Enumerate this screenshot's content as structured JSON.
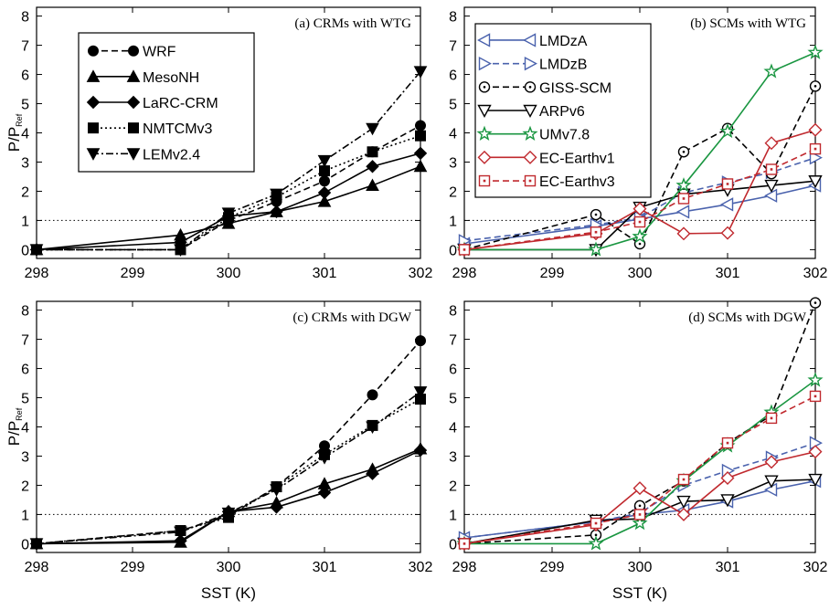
{
  "chart_data": [
    {
      "type": "line",
      "title": "(a) CRMs with WTG",
      "ylabel_main": "P/P",
      "ylabel_sub": "Ref",
      "xlabel": "",
      "xlim": [
        298,
        302
      ],
      "ylim": [
        -0.3,
        8.3
      ],
      "xticks": [
        298,
        299,
        300,
        301,
        302
      ],
      "yticks": [
        0,
        1,
        2,
        3,
        4,
        5,
        6,
        7,
        8
      ],
      "reference_line": 1,
      "legend_position": "top-left",
      "series": [
        {
          "name": "WRF",
          "color": "#000000",
          "dash": "7,4",
          "marker": "circle",
          "filled": true,
          "x": [
            298,
            299.5,
            300,
            300.5,
            301,
            301.5,
            302
          ],
          "y": [
            0,
            0,
            1.0,
            1.65,
            2.35,
            3.35,
            4.25
          ]
        },
        {
          "name": "MesoNH",
          "color": "#000000",
          "dash": "",
          "marker": "triangle-up",
          "filled": true,
          "x": [
            298,
            299.5,
            300,
            300.5,
            301,
            301.5,
            302
          ],
          "y": [
            0,
            0.5,
            0.9,
            1.3,
            1.65,
            2.2,
            2.85
          ]
        },
        {
          "name": "LaRC-CRM",
          "color": "#000000",
          "dash": "",
          "marker": "diamond",
          "filled": true,
          "x": [
            298,
            299.5,
            300,
            300.5,
            301,
            301.5,
            302
          ],
          "y": [
            0,
            0.25,
            1.15,
            1.3,
            1.95,
            2.85,
            3.3
          ]
        },
        {
          "name": "NMTCMv3",
          "color": "#000000",
          "dash": "2,3",
          "marker": "square",
          "filled": true,
          "x": [
            298,
            299.5,
            300,
            300.5,
            301,
            301.5,
            302
          ],
          "y": [
            0,
            0,
            1.1,
            1.8,
            2.7,
            3.35,
            3.9
          ]
        },
        {
          "name": "LEMv2.4",
          "color": "#000000",
          "dash": "8,3,2,3",
          "marker": "triangle-down",
          "filled": true,
          "x": [
            298,
            299.5,
            300,
            300.5,
            301,
            301.5,
            302
          ],
          "y": [
            0,
            0,
            1.25,
            1.9,
            3.05,
            4.15,
            6.1
          ]
        }
      ]
    },
    {
      "type": "line",
      "title": "(b) SCMs with WTG",
      "ylabel_main": "",
      "ylabel_sub": "",
      "xlabel": "",
      "xlim": [
        298,
        302
      ],
      "ylim": [
        -0.3,
        8.3
      ],
      "xticks": [
        298,
        299,
        300,
        301,
        302
      ],
      "yticks": [
        0,
        1,
        2,
        3,
        4,
        5,
        6,
        7,
        8
      ],
      "reference_line": 1,
      "legend_position": "top-left",
      "series": [
        {
          "name": "LMDzA",
          "color": "#4a62ad",
          "dash": "",
          "marker": "triangle-left",
          "filled": false,
          "x": [
            298,
            299.5,
            300,
            300.5,
            301,
            301.5,
            302
          ],
          "y": [
            0.2,
            0.8,
            1.05,
            1.3,
            1.55,
            1.85,
            2.2
          ]
        },
        {
          "name": "LMDzB",
          "color": "#4a62ad",
          "dash": "7,4",
          "marker": "triangle-right",
          "filled": false,
          "x": [
            298,
            299.5,
            300,
            300.5,
            301,
            301.5,
            302
          ],
          "y": [
            0.3,
            0.85,
            1.1,
            1.95,
            2.3,
            2.65,
            3.15
          ]
        },
        {
          "name": "GISS-SCM",
          "color": "#000000",
          "dash": "7,4",
          "marker": "circle-dot",
          "filled": false,
          "x": [
            298,
            299.5,
            300,
            300.5,
            301,
            301.5,
            302
          ],
          "y": [
            0,
            1.2,
            0.2,
            3.35,
            4.15,
            2.6,
            5.6
          ]
        },
        {
          "name": "ARPv6",
          "color": "#000000",
          "dash": "",
          "marker": "triangle-down",
          "filled": false,
          "x": [
            298,
            299.5,
            300,
            300.5,
            301,
            301.5,
            302
          ],
          "y": [
            0,
            0,
            1.45,
            1.9,
            2.05,
            2.2,
            2.35
          ]
        },
        {
          "name": "UMv7.8",
          "color": "#1a9641",
          "dash": "",
          "marker": "star",
          "filled": false,
          "x": [
            298,
            299.5,
            300,
            300.5,
            301,
            301.5,
            302
          ],
          "y": [
            0,
            0,
            0.45,
            2.2,
            4.05,
            6.1,
            6.75
          ]
        },
        {
          "name": "EC-Earthv1",
          "color": "#c0292e",
          "dash": "",
          "marker": "diamond",
          "filled": false,
          "x": [
            298,
            299.5,
            300,
            300.5,
            301,
            301.5,
            302
          ],
          "y": [
            0,
            0.55,
            1.4,
            0.55,
            0.57,
            3.65,
            4.1
          ]
        },
        {
          "name": "EC-Earthv3",
          "color": "#c0292e",
          "dash": "7,4",
          "marker": "square-dot",
          "filled": false,
          "x": [
            298,
            299.5,
            300,
            300.5,
            301,
            301.5,
            302
          ],
          "y": [
            0,
            0.6,
            0.95,
            1.75,
            2.25,
            2.75,
            3.45
          ]
        }
      ]
    },
    {
      "type": "line",
      "title": "(c) CRMs with DGW",
      "ylabel_main": "P/P",
      "ylabel_sub": "Ref",
      "xlabel": "SST (K)",
      "xlim": [
        298,
        302
      ],
      "ylim": [
        -0.3,
        8.3
      ],
      "xticks": [
        298,
        299,
        300,
        301,
        302
      ],
      "yticks": [
        0,
        1,
        2,
        3,
        4,
        5,
        6,
        7,
        8
      ],
      "reference_line": 1,
      "legend_position": "none",
      "series": [
        {
          "name": "WRF",
          "color": "#000000",
          "dash": "7,4",
          "marker": "circle",
          "filled": true,
          "x": [
            298,
            299.5,
            300,
            300.5,
            301,
            301.5,
            302
          ],
          "y": [
            0,
            0.45,
            0.95,
            1.95,
            3.35,
            5.1,
            6.95
          ]
        },
        {
          "name": "MesoNH",
          "color": "#000000",
          "dash": "",
          "marker": "triangle-up",
          "filled": true,
          "x": [
            298,
            299.5,
            300,
            300.5,
            301,
            301.5,
            302
          ],
          "y": [
            0,
            0.05,
            1.1,
            1.4,
            2.05,
            2.55,
            3.25
          ]
        },
        {
          "name": "LaRC-CRM",
          "color": "#000000",
          "dash": "",
          "marker": "diamond",
          "filled": true,
          "x": [
            298,
            299.5,
            300,
            300.5,
            301,
            301.5,
            302
          ],
          "y": [
            0,
            0.1,
            1.1,
            1.25,
            1.75,
            2.4,
            3.2
          ]
        },
        {
          "name": "NMTCMv3",
          "color": "#000000",
          "dash": "2,3",
          "marker": "square",
          "filled": true,
          "x": [
            298,
            299.5,
            300,
            300.5,
            301,
            301.5,
            302
          ],
          "y": [
            0,
            0.45,
            0.9,
            1.95,
            3.05,
            4.05,
            4.95
          ]
        },
        {
          "name": "LEMv2.4",
          "color": "#000000",
          "dash": "8,3,2,3",
          "marker": "triangle-down",
          "filled": true,
          "x": [
            298,
            299.5,
            300,
            300.5,
            301,
            301.5,
            302
          ],
          "y": [
            0,
            0.4,
            1.05,
            1.85,
            2.95,
            4.0,
            5.2
          ]
        }
      ]
    },
    {
      "type": "line",
      "title": "(d) SCMs with  DGW",
      "ylabel_main": "",
      "ylabel_sub": "",
      "xlabel": "SST (K)",
      "xlim": [
        298,
        302
      ],
      "ylim": [
        -0.3,
        8.3
      ],
      "xticks": [
        298,
        299,
        300,
        301,
        302
      ],
      "yticks": [
        0,
        1,
        2,
        3,
        4,
        5,
        6,
        7,
        8
      ],
      "reference_line": 1,
      "legend_position": "none",
      "series": [
        {
          "name": "LMDzA",
          "color": "#4a62ad",
          "dash": "",
          "marker": "triangle-left",
          "filled": false,
          "x": [
            298,
            299.5,
            300,
            300.5,
            301,
            301.5,
            302
          ],
          "y": [
            0.2,
            0.75,
            1.0,
            1.15,
            1.45,
            1.85,
            2.15
          ]
        },
        {
          "name": "LMDzB",
          "color": "#4a62ad",
          "dash": "7,4",
          "marker": "triangle-right",
          "filled": false,
          "x": [
            298,
            299.5,
            300,
            300.5,
            301,
            301.5,
            302
          ],
          "y": [
            0.2,
            0.75,
            1.05,
            2.0,
            2.5,
            2.95,
            3.45
          ]
        },
        {
          "name": "GISS-SCM",
          "color": "#000000",
          "dash": "7,4",
          "marker": "circle-dot",
          "filled": false,
          "x": [
            298,
            299.5,
            300,
            300.5,
            301,
            301.5,
            302
          ],
          "y": [
            0,
            0.3,
            1.3,
            2.15,
            3.45,
            4.4,
            8.25
          ]
        },
        {
          "name": "ARPv6",
          "color": "#000000",
          "dash": "",
          "marker": "triangle-down",
          "filled": false,
          "x": [
            298,
            299.5,
            300,
            300.5,
            301,
            301.5,
            302
          ],
          "y": [
            0,
            0.8,
            0.85,
            1.45,
            1.5,
            2.15,
            2.2
          ]
        },
        {
          "name": "UMv7.8",
          "color": "#1a9641",
          "dash": "",
          "marker": "star",
          "filled": false,
          "x": [
            298,
            299.5,
            300,
            300.5,
            301,
            301.5,
            302
          ],
          "y": [
            0,
            0,
            0.7,
            2.15,
            3.35,
            4.5,
            5.6
          ]
        },
        {
          "name": "EC-Earthv1",
          "color": "#c0292e",
          "dash": "",
          "marker": "diamond",
          "filled": false,
          "x": [
            298,
            299.5,
            300,
            300.5,
            301,
            301.5,
            302
          ],
          "y": [
            0,
            0.65,
            1.9,
            1.0,
            2.25,
            2.8,
            3.15
          ]
        },
        {
          "name": "EC-Earthv3",
          "color": "#c0292e",
          "dash": "7,4",
          "marker": "square-dot",
          "filled": false,
          "x": [
            298,
            299.5,
            300,
            300.5,
            301,
            301.5,
            302
          ],
          "y": [
            0,
            0.7,
            1.0,
            2.2,
            3.45,
            4.3,
            5.05
          ]
        }
      ]
    }
  ]
}
